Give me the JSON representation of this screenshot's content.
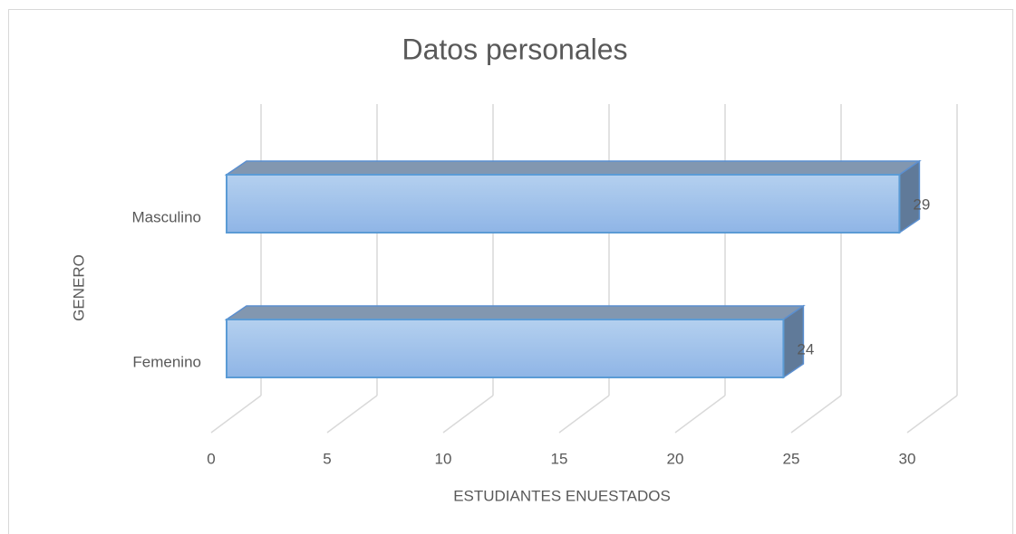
{
  "chart_data": {
    "type": "bar3d_horizontal",
    "title": "Datos personales",
    "xlabel": "ESTUDIANTES ENUESTADOS",
    "ylabel": "GENERO",
    "categories": [
      "Masculino",
      "Femenino"
    ],
    "values": [
      29,
      24
    ],
    "color": "#9dc0ea",
    "xlim": [
      0,
      30
    ],
    "xticks": [
      0,
      5,
      10,
      15,
      20,
      25,
      30
    ],
    "grid": true
  }
}
